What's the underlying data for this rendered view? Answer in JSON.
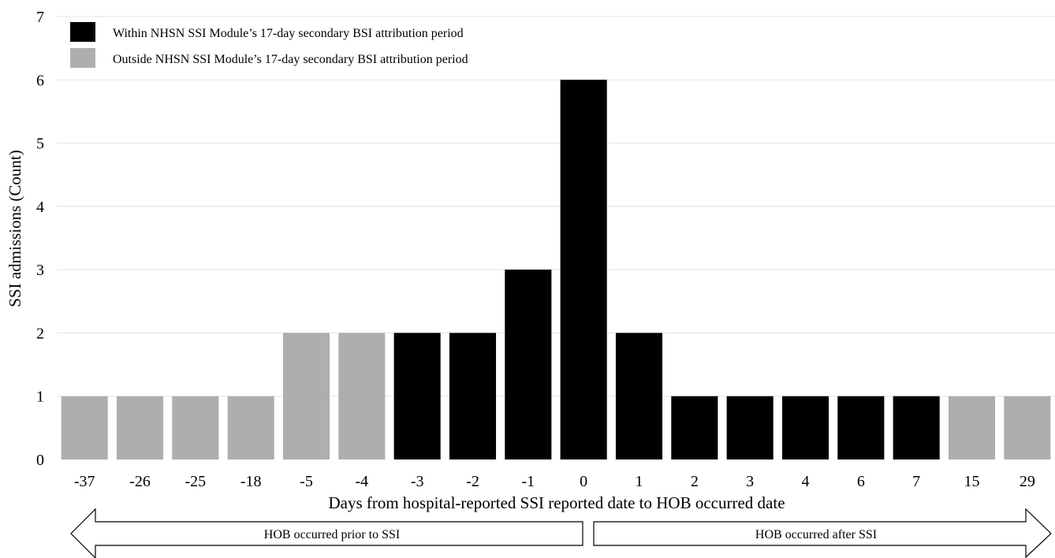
{
  "chart_data": {
    "type": "bar",
    "title": "",
    "xlabel": "Days from hospital-reported SSI reported date to HOB occurred date",
    "ylabel": "SSI admissions (Count)",
    "ylim": [
      0,
      7
    ],
    "yticks": [
      "0",
      "1",
      "2",
      "3",
      "4",
      "5",
      "6",
      "7"
    ],
    "grid": true,
    "legend_position": "top-left",
    "categories": [
      "-37",
      "-26",
      "-25",
      "-18",
      "-5",
      "-4",
      "-3",
      "-2",
      "-1",
      "0",
      "1",
      "2",
      "3",
      "4",
      "6",
      "7",
      "15",
      "29"
    ],
    "values": [
      1,
      1,
      1,
      1,
      2,
      2,
      2,
      2,
      3,
      6,
      2,
      1,
      1,
      1,
      1,
      1,
      1,
      1
    ],
    "groups": [
      "outside",
      "outside",
      "outside",
      "outside",
      "outside",
      "outside",
      "within",
      "within",
      "within",
      "within",
      "within",
      "within",
      "within",
      "within",
      "within",
      "within",
      "outside",
      "outside"
    ],
    "series": [
      {
        "key": "within",
        "name": "Within NHSN SSI Module’s 17-day secondary BSI attribution period",
        "color": "#000000"
      },
      {
        "key": "outside",
        "name": "Outside NHSN SSI Module’s 17-day secondary BSI attribution period",
        "color": "#b0adad"
      }
    ],
    "arrows": {
      "left": "HOB occurred prior to SSI",
      "right": "HOB occurred after SSI"
    }
  }
}
